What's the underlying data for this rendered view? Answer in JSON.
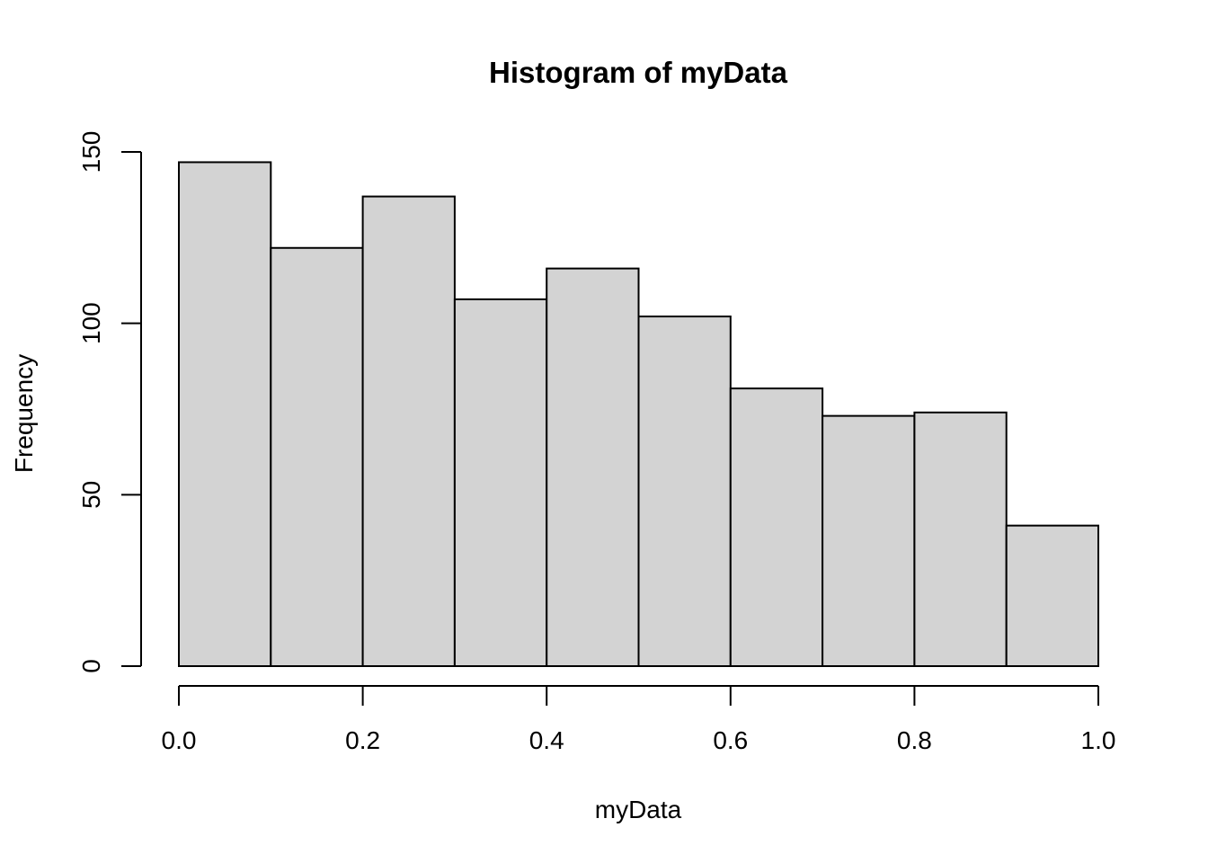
{
  "chart_data": {
    "type": "bar",
    "title": "Histogram of myData",
    "xlabel": "myData",
    "ylabel": "Frequency",
    "bin_edges": [
      0.0,
      0.1,
      0.2,
      0.3,
      0.4,
      0.5,
      0.6,
      0.7,
      0.8,
      0.9,
      1.0
    ],
    "values": [
      147,
      122,
      137,
      107,
      116,
      102,
      81,
      73,
      74,
      41
    ],
    "xlim": [
      0.0,
      1.0
    ],
    "ylim": [
      0,
      150
    ],
    "x_ticks": [
      0.0,
      0.2,
      0.4,
      0.6,
      0.8,
      1.0
    ],
    "x_tick_labels": [
      "0.0",
      "0.2",
      "0.4",
      "0.6",
      "0.8",
      "1.0"
    ],
    "y_ticks": [
      0,
      50,
      100,
      150
    ],
    "y_tick_labels": [
      "0",
      "50",
      "100",
      "150"
    ],
    "grid": false,
    "legend": "none",
    "bar_color": "#d3d3d3",
    "edge_color": "#000000"
  }
}
